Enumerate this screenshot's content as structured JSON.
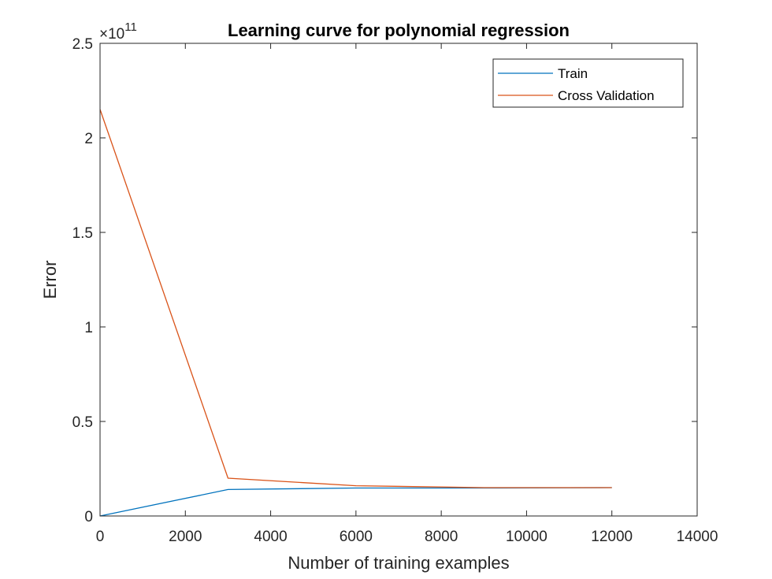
{
  "chart_data": {
    "type": "line",
    "title": "Learning curve for polynomial regression",
    "xlabel": "Number of training examples",
    "ylabel": "Error",
    "xlim": [
      0,
      14000
    ],
    "ylim": [
      0,
      2.5
    ],
    "y_exponent_label": "×10",
    "y_exponent_power": "11",
    "xticks": [
      "0",
      "2000",
      "4000",
      "6000",
      "8000",
      "10000",
      "12000",
      "14000"
    ],
    "xtick_values": [
      0,
      2000,
      4000,
      6000,
      8000,
      10000,
      12000,
      14000
    ],
    "yticks": [
      "0",
      "0.5",
      "1",
      "1.5",
      "2",
      "2.5"
    ],
    "ytick_values": [
      0,
      0.5,
      1,
      1.5,
      2,
      2.5
    ],
    "grid": false,
    "legend_position": "top-right",
    "x": [
      1,
      3000,
      6000,
      9000,
      12000
    ],
    "series": [
      {
        "name": "Train",
        "color": "#0072BD",
        "values": [
          0.0,
          0.14,
          0.148,
          0.148,
          0.15
        ]
      },
      {
        "name": "Cross Validation",
        "color": "#D95319",
        "values": [
          2.15,
          0.2,
          0.16,
          0.15,
          0.15
        ]
      }
    ]
  }
}
